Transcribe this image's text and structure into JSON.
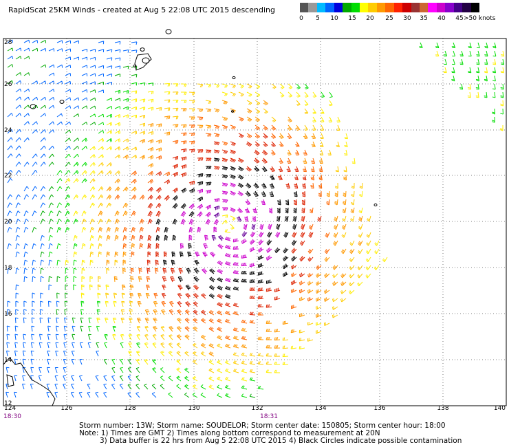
{
  "title": "RapidScat 25KM Winds - created at Aug  5 22:08 UTC 2015 descending",
  "scale": {
    "colors": [
      "#555555",
      "#999999",
      "#00bbff",
      "#0066ff",
      "#0000dd",
      "#00aa00",
      "#00dd00",
      "#ffff00",
      "#ffcc00",
      "#ff9900",
      "#ff6600",
      "#ff2200",
      "#cc0000",
      "#993333",
      "#cc6633",
      "#ff00ff",
      "#cc00cc",
      "#8800cc",
      "#440088",
      "#220044",
      "#000000"
    ],
    "labels": [
      "0",
      "5",
      "10",
      "15",
      "20",
      "25",
      "30",
      "35",
      "40",
      "45",
      ">50 knots"
    ]
  },
  "map": {
    "lon_labels": [
      "124",
      "126",
      "128",
      "130",
      "132",
      "134",
      "136",
      "138",
      "140"
    ],
    "lat_labels": [
      "28",
      "26",
      "24",
      "22",
      "20",
      "18",
      "16",
      "14",
      "12"
    ],
    "time_left": "18:30",
    "time_mid": "18:31"
  },
  "storm": {
    "number": "13W",
    "name": "SOUDELOR",
    "center_date": "150805",
    "center_hour": "18:00",
    "line1": "Storm number: 13W;  Storm name: SOUDELOR;  Storm center date: 150805;  Storm center hour: 18:00"
  },
  "notes": {
    "line2": "Note: 1) Times are GMT  2) Times along bottom correspond to measurement at 20N",
    "line3": "3) Data buffer is 22 hrs from Aug  5 22:08 UTC 2015  4) Black Circles indicate possible contamination"
  }
}
